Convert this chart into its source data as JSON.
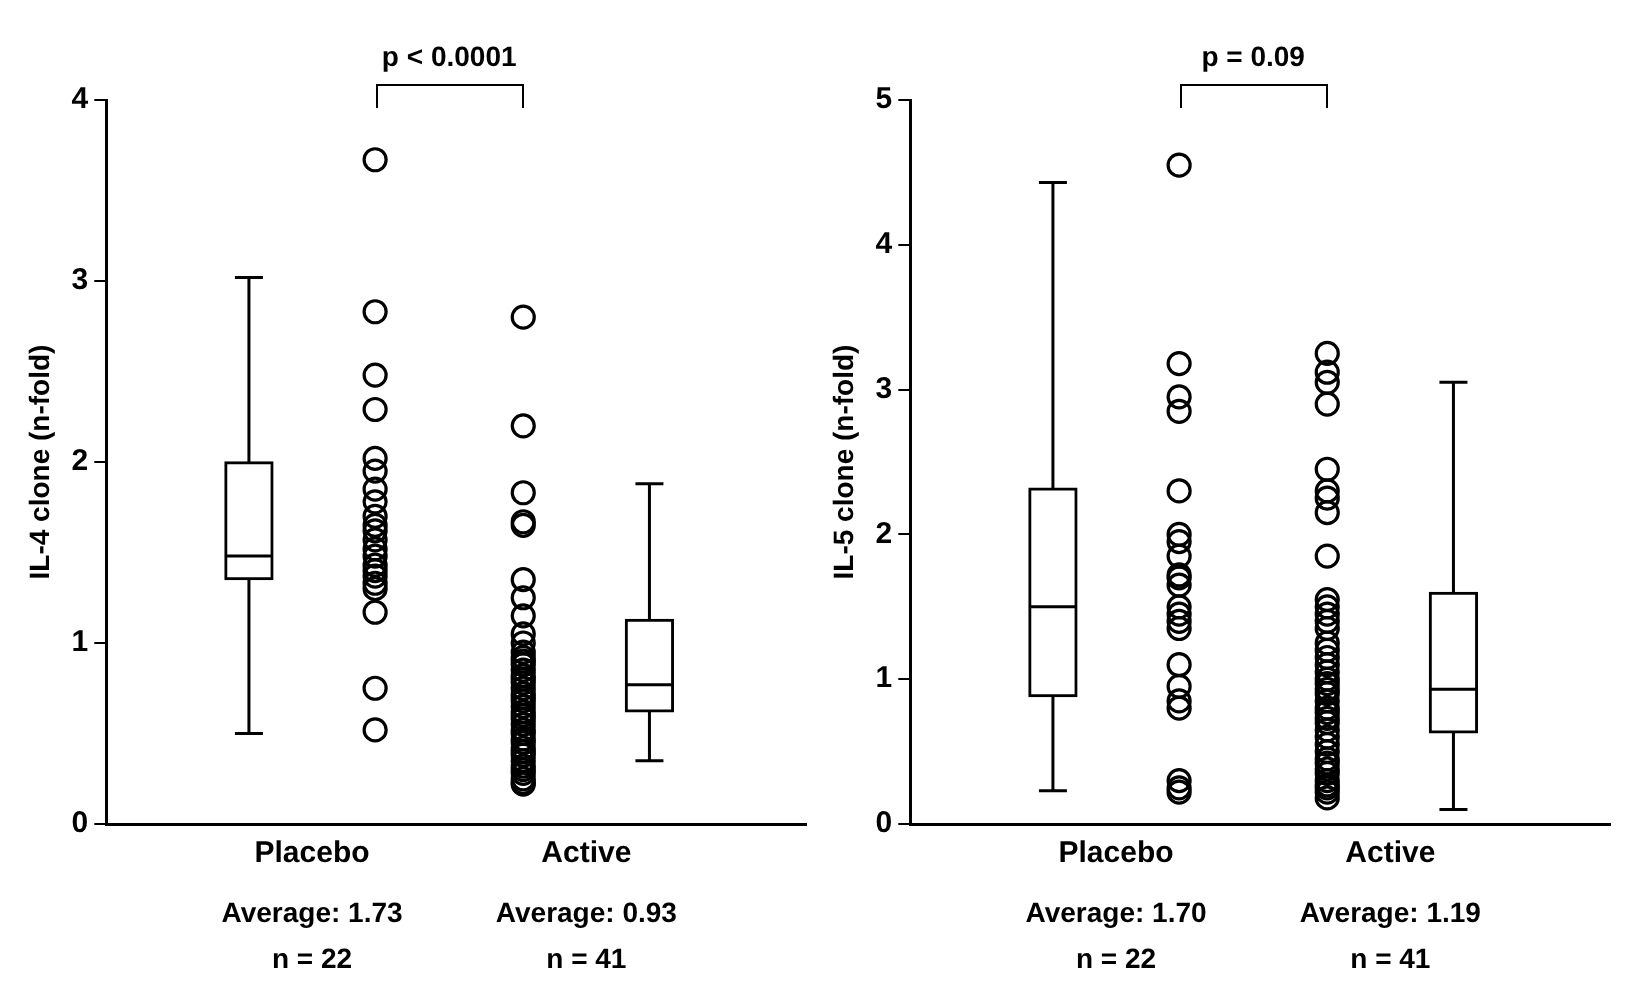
{
  "chart_data": [
    {
      "type": "box",
      "ylabel": "IL-4 clone (n-fold)",
      "categories": [
        "Placebo",
        "Active"
      ],
      "ylim": [
        0,
        4
      ],
      "yticks": [
        0,
        1,
        2,
        3,
        4
      ],
      "grid": false,
      "legend": false,
      "boxes": [
        {
          "low": 0.5,
          "q1": 1.35,
          "median": 1.48,
          "q3": 2.0,
          "high": 3.02
        },
        {
          "low": 0.35,
          "q1": 0.62,
          "median": 0.77,
          "q3": 1.13,
          "high": 1.88
        }
      ],
      "series": [
        {
          "type": "scatter",
          "color": "#000000",
          "marker": "circle",
          "x": [
            "Placebo",
            "Placebo",
            "Placebo",
            "Placebo",
            "Placebo",
            "Placebo",
            "Placebo",
            "Placebo",
            "Placebo",
            "Placebo",
            "Placebo",
            "Placebo",
            "Placebo",
            "Placebo",
            "Placebo",
            "Placebo",
            "Placebo",
            "Placebo",
            "Placebo",
            "Placebo",
            "Placebo",
            "Placebo",
            "Active",
            "Active",
            "Active",
            "Active",
            "Active",
            "Active",
            "Active",
            "Active",
            "Active",
            "Active",
            "Active",
            "Active",
            "Active",
            "Active",
            "Active",
            "Active",
            "Active",
            "Active",
            "Active",
            "Active",
            "Active",
            "Active",
            "Active",
            "Active",
            "Active",
            "Active",
            "Active",
            "Active",
            "Active",
            "Active",
            "Active",
            "Active",
            "Active",
            "Active",
            "Active",
            "Active",
            "Active",
            "Active",
            "Active",
            "Active",
            "Active"
          ],
          "values": [
            3.67,
            2.83,
            2.48,
            2.29,
            2.02,
            1.95,
            1.85,
            1.78,
            1.7,
            1.65,
            1.62,
            1.57,
            1.52,
            1.48,
            1.43,
            1.4,
            1.37,
            1.33,
            1.3,
            1.17,
            0.75,
            0.52,
            2.8,
            2.2,
            1.83,
            1.67,
            1.65,
            1.35,
            1.25,
            1.15,
            1.05,
            1.0,
            0.95,
            0.92,
            0.9,
            0.88,
            0.85,
            0.82,
            0.8,
            0.78,
            0.75,
            0.72,
            0.7,
            0.68,
            0.65,
            0.62,
            0.6,
            0.58,
            0.55,
            0.52,
            0.5,
            0.47,
            0.45,
            0.42,
            0.4,
            0.38,
            0.35,
            0.32,
            0.3,
            0.28,
            0.25,
            0.23,
            0.22
          ]
        }
      ],
      "annotations": [
        "p < 0.0001",
        "Average: 1.73",
        "n = 22",
        "Average: 0.93",
        "n = 41"
      ]
    },
    {
      "type": "box",
      "ylabel": "IL-5 clone (n-fold)",
      "categories": [
        "Placebo",
        "Active"
      ],
      "ylim": [
        0,
        5
      ],
      "yticks": [
        0,
        1,
        2,
        3,
        4,
        5
      ],
      "grid": false,
      "legend": false,
      "boxes": [
        {
          "low": 0.23,
          "q1": 0.88,
          "median": 1.5,
          "q3": 2.32,
          "high": 4.43
        },
        {
          "low": 0.1,
          "q1": 0.63,
          "median": 0.93,
          "q3": 1.6,
          "high": 3.05
        }
      ],
      "series": [
        {
          "type": "scatter",
          "color": "#000000",
          "marker": "circle",
          "x": [
            "Placebo",
            "Placebo",
            "Placebo",
            "Placebo",
            "Placebo",
            "Placebo",
            "Placebo",
            "Placebo",
            "Placebo",
            "Placebo",
            "Placebo",
            "Placebo",
            "Placebo",
            "Placebo",
            "Placebo",
            "Placebo",
            "Placebo",
            "Placebo",
            "Placebo",
            "Placebo",
            "Placebo",
            "Placebo",
            "Active",
            "Active",
            "Active",
            "Active",
            "Active",
            "Active",
            "Active",
            "Active",
            "Active",
            "Active",
            "Active",
            "Active",
            "Active",
            "Active",
            "Active",
            "Active",
            "Active",
            "Active",
            "Active",
            "Active",
            "Active",
            "Active",
            "Active",
            "Active",
            "Active",
            "Active",
            "Active",
            "Active",
            "Active",
            "Active",
            "Active",
            "Active",
            "Active",
            "Active",
            "Active",
            "Active",
            "Active",
            "Active",
            "Active",
            "Active",
            "Active"
          ],
          "values": [
            4.55,
            3.18,
            2.95,
            2.85,
            2.3,
            2.0,
            1.95,
            1.85,
            1.72,
            1.7,
            1.65,
            1.5,
            1.45,
            1.4,
            1.35,
            1.1,
            0.95,
            0.85,
            0.8,
            0.3,
            0.25,
            0.22,
            3.25,
            3.12,
            3.05,
            2.9,
            2.45,
            2.3,
            2.25,
            2.15,
            1.85,
            1.55,
            1.5,
            1.45,
            1.4,
            1.35,
            1.25,
            1.2,
            1.15,
            1.1,
            1.05,
            1.0,
            0.97,
            0.93,
            0.9,
            0.85,
            0.8,
            0.77,
            0.73,
            0.7,
            0.65,
            0.6,
            0.55,
            0.5,
            0.45,
            0.42,
            0.38,
            0.35,
            0.3,
            0.27,
            0.25,
            0.22,
            0.18
          ]
        }
      ],
      "annotations": [
        "p = 0.09",
        "Average: 1.70",
        "n = 22",
        "Average: 1.19",
        "n = 41"
      ]
    }
  ]
}
